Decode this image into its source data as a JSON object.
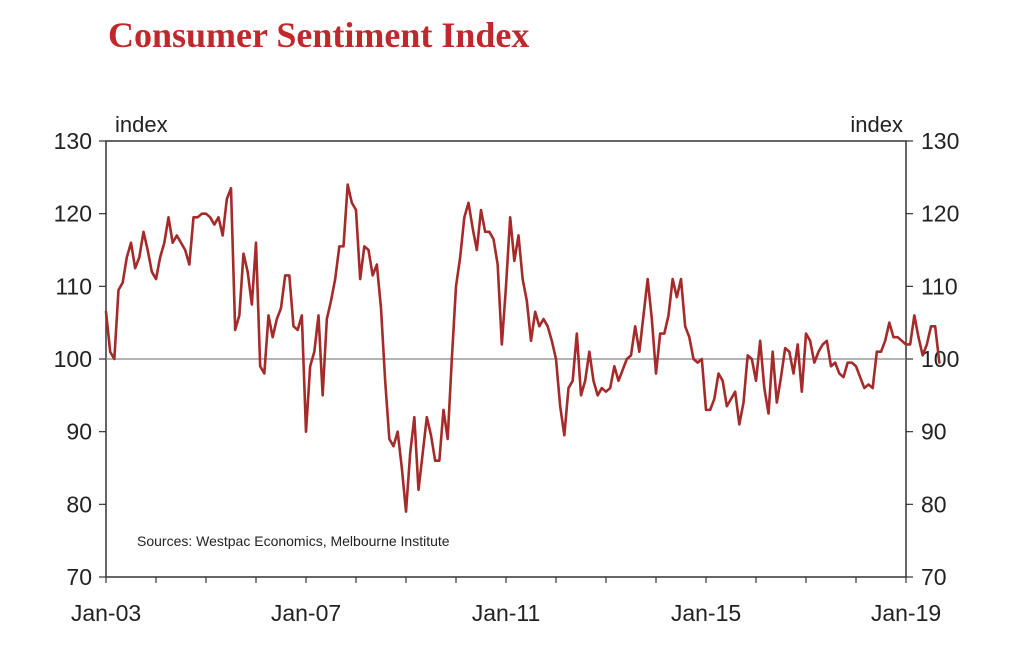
{
  "title": "Consumer Sentiment Index",
  "colors": {
    "title": "#c0282d",
    "line": "#a52a2a",
    "axis": "#333333",
    "ref": "#888888"
  },
  "chart_data": {
    "type": "line",
    "title": "Consumer Sentiment Index",
    "left_unit": "index",
    "right_unit": "index",
    "ylim": [
      70,
      130
    ],
    "yticks": [
      70,
      80,
      90,
      100,
      110,
      120,
      130
    ],
    "xlim": [
      "2003-01",
      "2019-01"
    ],
    "xtick_labels": [
      "Jan-03",
      "Jan-07",
      "Jan-11",
      "Jan-15",
      "Jan-19"
    ],
    "reference_line": 100,
    "source": "Sources: Westpac Economics, Melbourne Institute",
    "legend": "none",
    "series": [
      {
        "start": "2003-01",
        "frequency": "monthly",
        "values": [
          106.5,
          101,
          100,
          109.5,
          110.5,
          114,
          116,
          112.5,
          114,
          117.5,
          115,
          112,
          111,
          114,
          116,
          119.5,
          116,
          117,
          116,
          115,
          113,
          119.5,
          119.5,
          120,
          120,
          119.5,
          118.5,
          119.5,
          117,
          122,
          123.5,
          104,
          106,
          114.5,
          112,
          107.5,
          116,
          99,
          98,
          106,
          103,
          105.5,
          107,
          111.5,
          111.5,
          104.5,
          104,
          106,
          90,
          99,
          101,
          106,
          95,
          105.5,
          108,
          111,
          115.5,
          115.5,
          124,
          121.5,
          120.5,
          111,
          115.5,
          115,
          111.5,
          113,
          107,
          97,
          89,
          88,
          90,
          85,
          79,
          87,
          92,
          82,
          87,
          92,
          89.5,
          86,
          86,
          93,
          89,
          100,
          110,
          114,
          119.5,
          121.5,
          118,
          115,
          120.5,
          117.5,
          117.5,
          116.5,
          113,
          102,
          110,
          119.5,
          113.5,
          117,
          111,
          108,
          102.5,
          106.5,
          104.5,
          105.5,
          104.5,
          102.5,
          100,
          93.5,
          89.5,
          96,
          97,
          103.5,
          95,
          97,
          101,
          97,
          95,
          96,
          95.5,
          96,
          99,
          97,
          98.5,
          100,
          100.5,
          104.5,
          101,
          106,
          111,
          105.5,
          98,
          103.5,
          103.5,
          106,
          111,
          108.5,
          111,
          104.5,
          103,
          100,
          99.5,
          100,
          93,
          93,
          94.5,
          98,
          97,
          93.5,
          94.5,
          95.5,
          91,
          94,
          100.5,
          100,
          97,
          102.5,
          96,
          92.5,
          101,
          94,
          97.5,
          101.5,
          101,
          98,
          102,
          95.5,
          103.5,
          102.5,
          99.5,
          101,
          102,
          102.5,
          99,
          99.5,
          98,
          97.5,
          99.5,
          99.5,
          99,
          97.5,
          96,
          96.5,
          96,
          101,
          101,
          102.5,
          105,
          103,
          103,
          102.5,
          102,
          102,
          106,
          103,
          100.5,
          102,
          104.5,
          104.5,
          99.5
        ]
      }
    ]
  }
}
